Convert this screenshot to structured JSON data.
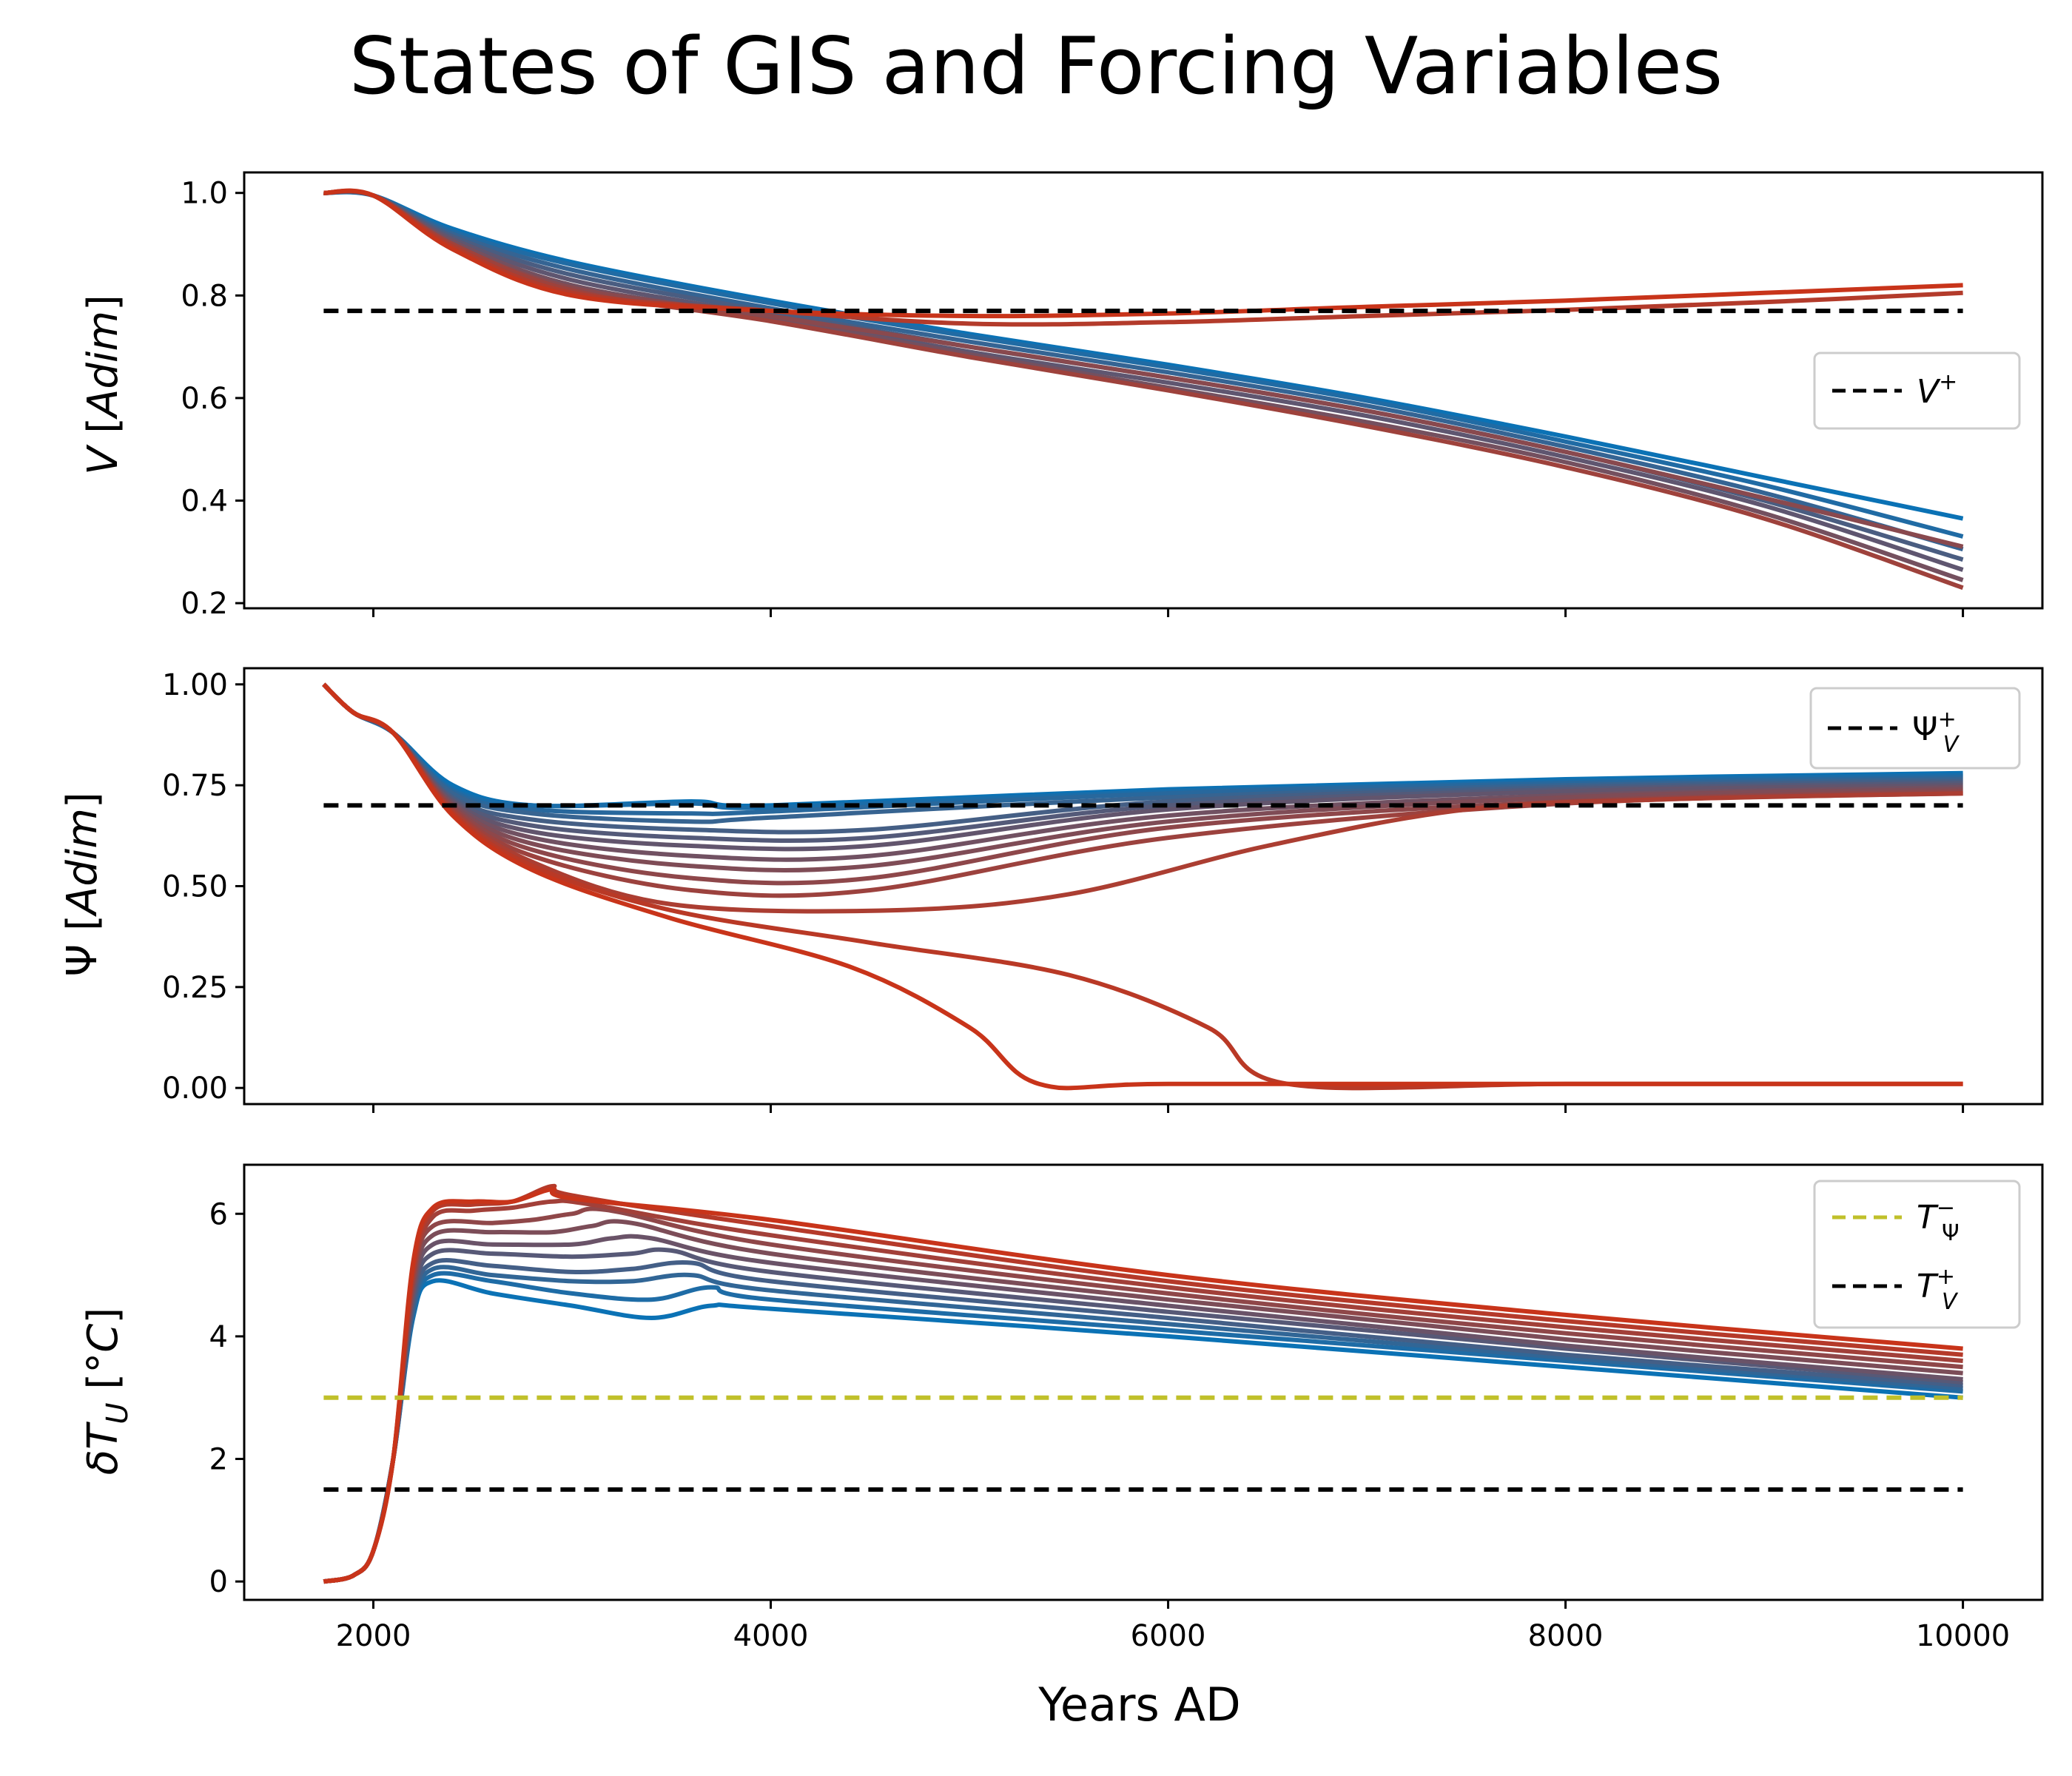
{
  "title": "States of GIS and Forcing Variables",
  "colors": {
    "blue": "#0b72b5",
    "red": "#c8341a",
    "threshold_black": "#000000",
    "threshold_olive": "#c0c02a"
  },
  "chart_data": [
    {
      "type": "line",
      "panel": "V",
      "ylabel": "V [Adim]",
      "xlim": [
        1750,
        10000
      ],
      "ylim": [
        0.19,
        1.04
      ],
      "yticks": [
        "0.2",
        "0.4",
        "0.6",
        "0.8",
        "1.0"
      ],
      "xticks": [
        2000,
        4000,
        6000,
        8000,
        10000
      ],
      "xticklabels_shown": false,
      "color_gradient": "blue to red",
      "series": [
        {
          "x": [
            1750,
            2000,
            2400,
            3000,
            4000,
            5000,
            6000,
            7000,
            8000,
            9000,
            10000
          ],
          "values": [
            1.0,
            0.995,
            0.93,
            0.865,
            0.79,
            0.725,
            0.665,
            0.6,
            0.525,
            0.445,
            0.365
          ]
        },
        {
          "x": [
            1750,
            2000,
            2400,
            3000,
            4000,
            5000,
            6000,
            7000,
            8000,
            9000,
            10000
          ],
          "values": [
            1.0,
            0.995,
            0.925,
            0.86,
            0.785,
            0.72,
            0.66,
            0.595,
            0.515,
            0.43,
            0.33
          ]
        },
        {
          "x": [
            1750,
            2000,
            2400,
            3000,
            4000,
            5000,
            6000,
            7000,
            8000,
            9000,
            10000
          ],
          "values": [
            1.0,
            0.995,
            0.92,
            0.85,
            0.775,
            0.71,
            0.65,
            0.585,
            0.505,
            0.415,
            0.305
          ]
        },
        {
          "x": [
            1750,
            2000,
            2400,
            3000,
            4000,
            5000,
            6000,
            7000,
            8000,
            9000,
            10000
          ],
          "values": [
            1.0,
            0.995,
            0.915,
            0.84,
            0.768,
            0.7,
            0.64,
            0.575,
            0.495,
            0.4,
            0.285
          ]
        },
        {
          "x": [
            1750,
            2000,
            2400,
            3000,
            4000,
            5000,
            6000,
            7000,
            8000,
            9000,
            10000
          ],
          "values": [
            1.0,
            0.995,
            0.91,
            0.83,
            0.76,
            0.69,
            0.63,
            0.565,
            0.485,
            0.39,
            0.265
          ]
        },
        {
          "x": [
            1750,
            2000,
            2400,
            3000,
            4000,
            5000,
            6000,
            7000,
            8000,
            9000,
            10000
          ],
          "values": [
            1.0,
            0.995,
            0.905,
            0.82,
            0.755,
            0.685,
            0.62,
            0.553,
            0.475,
            0.375,
            0.245
          ]
        },
        {
          "x": [
            1750,
            2000,
            2400,
            3000,
            4000,
            5000,
            6000,
            7000,
            8000,
            9000,
            10000
          ],
          "values": [
            1.0,
            0.995,
            0.9,
            0.815,
            0.76,
            0.7,
            0.64,
            0.575,
            0.495,
            0.405,
            0.31
          ]
        },
        {
          "x": [
            1750,
            2000,
            2400,
            3000,
            4000,
            5000,
            6000,
            7000,
            8000,
            9000,
            10000
          ],
          "values": [
            1.0,
            0.995,
            0.9,
            0.81,
            0.75,
            0.68,
            0.615,
            0.545,
            0.465,
            0.365,
            0.23
          ]
        },
        {
          "x": [
            1750,
            2000,
            2400,
            3000,
            4000,
            5000,
            6000,
            7000,
            8000,
            9000,
            10000
          ],
          "values": [
            1.0,
            0.995,
            0.895,
            0.805,
            0.77,
            0.745,
            0.748,
            0.76,
            0.772,
            0.787,
            0.805
          ]
        },
        {
          "x": [
            1750,
            2000,
            2400,
            3000,
            4000,
            5000,
            6000,
            7000,
            8000,
            9000,
            10000
          ],
          "values": [
            1.0,
            0.995,
            0.89,
            0.8,
            0.77,
            0.76,
            0.765,
            0.778,
            0.79,
            0.805,
            0.82
          ]
        }
      ],
      "thresholds": [
        {
          "label": "V^+",
          "value": 0.77,
          "color": "#000000"
        }
      ],
      "legend": "center-right"
    },
    {
      "type": "line",
      "panel": "Psi",
      "ylabel": "Ψ [Adim]",
      "xlim": [
        1750,
        10000
      ],
      "ylim": [
        -0.04,
        1.04
      ],
      "yticks": [
        "0.00",
        "0.25",
        "0.50",
        "0.75",
        "1.00"
      ],
      "xticks": [
        2000,
        4000,
        6000,
        8000,
        10000
      ],
      "xticklabels_shown": false,
      "color_gradient": "blue to red",
      "series": [
        {
          "x": [
            1750,
            1900,
            2100,
            2400,
            2800,
            3600,
            4000,
            6000,
            8000,
            10000
          ],
          "values": [
            1.0,
            0.93,
            0.88,
            0.75,
            0.7,
            0.71,
            0.7,
            0.74,
            0.765,
            0.78
          ]
        },
        {
          "x": [
            1750,
            1900,
            2100,
            2400,
            2800,
            3600,
            4000,
            6000,
            8000,
            10000
          ],
          "values": [
            1.0,
            0.93,
            0.88,
            0.74,
            0.7,
            0.705,
            0.695,
            0.735,
            0.76,
            0.775
          ]
        },
        {
          "x": [
            1750,
            1900,
            2100,
            2400,
            2800,
            3600,
            4000,
            6000,
            8000,
            10000
          ],
          "values": [
            1.0,
            0.93,
            0.88,
            0.735,
            0.69,
            0.68,
            0.685,
            0.73,
            0.755,
            0.77
          ]
        },
        {
          "x": [
            1750,
            1900,
            2100,
            2400,
            2800,
            3600,
            4000,
            6000,
            8000,
            10000
          ],
          "values": [
            1.0,
            0.93,
            0.88,
            0.73,
            0.68,
            0.66,
            0.67,
            0.72,
            0.75,
            0.765
          ]
        },
        {
          "x": [
            1750,
            1900,
            2100,
            2400,
            2800,
            3600,
            4500,
            6000,
            8000,
            10000
          ],
          "values": [
            1.0,
            0.93,
            0.88,
            0.72,
            0.665,
            0.64,
            0.64,
            0.71,
            0.745,
            0.76
          ]
        },
        {
          "x": [
            1750,
            1900,
            2100,
            2400,
            2800,
            3600,
            4500,
            6000,
            8000,
            10000
          ],
          "values": [
            1.0,
            0.93,
            0.88,
            0.715,
            0.65,
            0.62,
            0.62,
            0.7,
            0.74,
            0.755
          ]
        },
        {
          "x": [
            1750,
            1900,
            2100,
            2400,
            2800,
            3600,
            4500,
            6000,
            8000,
            10000
          ],
          "values": [
            1.0,
            0.93,
            0.88,
            0.71,
            0.635,
            0.6,
            0.6,
            0.69,
            0.735,
            0.75
          ]
        },
        {
          "x": [
            1750,
            1900,
            2100,
            2400,
            2800,
            3600,
            4500,
            6000,
            8000,
            10000
          ],
          "values": [
            1.0,
            0.93,
            0.88,
            0.705,
            0.62,
            0.575,
            0.575,
            0.675,
            0.725,
            0.745
          ]
        },
        {
          "x": [
            1750,
            1900,
            2100,
            2400,
            2800,
            3600,
            4500,
            6000,
            8000,
            10000
          ],
          "values": [
            1.0,
            0.93,
            0.88,
            0.7,
            0.605,
            0.55,
            0.55,
            0.66,
            0.72,
            0.74
          ]
        },
        {
          "x": [
            1750,
            1900,
            2100,
            2400,
            2800,
            3600,
            4500,
            6000,
            8000,
            10000
          ],
          "values": [
            1.0,
            0.93,
            0.88,
            0.695,
            0.59,
            0.52,
            0.52,
            0.645,
            0.71,
            0.735
          ]
        },
        {
          "x": [
            1750,
            1900,
            2100,
            2400,
            2800,
            3600,
            4500,
            6000,
            8000,
            10000
          ],
          "values": [
            1.0,
            0.93,
            0.88,
            0.69,
            0.575,
            0.49,
            0.49,
            0.62,
            0.705,
            0.73
          ]
        },
        {
          "x": [
            1750,
            1900,
            2100,
            2400,
            2800,
            3500,
            4600,
            5500,
            6500,
            7500,
            8500,
            10000
          ],
          "values": [
            1.0,
            0.93,
            0.88,
            0.685,
            0.56,
            0.455,
            0.44,
            0.48,
            0.6,
            0.69,
            0.715,
            0.73
          ]
        },
        {
          "x": [
            1750,
            1900,
            2100,
            2400,
            2800,
            3500,
            4500,
            5500,
            6200,
            6600,
            8000,
            10000
          ],
          "values": [
            1.0,
            0.93,
            0.88,
            0.68,
            0.55,
            0.44,
            0.36,
            0.28,
            0.15,
            0.01,
            0.01,
            0.01
          ]
        },
        {
          "x": [
            1750,
            1900,
            2100,
            2400,
            2800,
            3500,
            4400,
            5000,
            5350,
            6000,
            8000,
            10000
          ],
          "values": [
            1.0,
            0.93,
            0.88,
            0.675,
            0.54,
            0.42,
            0.3,
            0.15,
            0.01,
            0.01,
            0.01,
            0.01
          ]
        }
      ],
      "thresholds": [
        {
          "label": "Ψ_V^+",
          "value": 0.7,
          "color": "#000000"
        }
      ],
      "legend": "top-right"
    },
    {
      "type": "line",
      "panel": "dT",
      "ylabel": "δT_U [°C]",
      "xlabel": "Years AD",
      "xlim": [
        1750,
        10000
      ],
      "ylim": [
        -0.3,
        6.8
      ],
      "yticks": [
        "0",
        "2",
        "4",
        "6"
      ],
      "xticks": [
        2000,
        4000,
        6000,
        8000,
        10000
      ],
      "xticklabels": [
        "2000",
        "4000",
        "6000",
        "8000",
        "10000"
      ],
      "color_gradient": "blue to red",
      "series": [
        {
          "x": [
            1750,
            1900,
            2000,
            2100,
            2200,
            2300,
            2600,
            3000,
            3400,
            3700,
            4000,
            6000,
            8000,
            10000
          ],
          "values": [
            0.0,
            0.1,
            0.5,
            2.0,
            4.3,
            4.9,
            4.7,
            4.5,
            4.3,
            4.5,
            4.45,
            4.0,
            3.5,
            3.0
          ]
        },
        {
          "x": [
            1750,
            1900,
            2000,
            2100,
            2200,
            2300,
            2600,
            3000,
            3400,
            3700,
            4000,
            6000,
            8000,
            10000
          ],
          "values": [
            0.0,
            0.1,
            0.5,
            2.0,
            4.35,
            5.0,
            4.9,
            4.7,
            4.6,
            4.8,
            4.6,
            4.1,
            3.6,
            3.1
          ]
        },
        {
          "x": [
            1750,
            1900,
            2000,
            2100,
            2200,
            2300,
            2600,
            3000,
            3300,
            3600,
            4000,
            6000,
            8000,
            10000
          ],
          "values": [
            0.0,
            0.1,
            0.5,
            2.0,
            4.4,
            5.1,
            5.0,
            4.9,
            4.9,
            5.0,
            4.75,
            4.2,
            3.65,
            3.15
          ]
        },
        {
          "x": [
            1750,
            1900,
            2000,
            2100,
            2200,
            2300,
            2600,
            3000,
            3300,
            3600,
            4000,
            6000,
            8000,
            10000
          ],
          "values": [
            0.0,
            0.1,
            0.5,
            2.0,
            4.5,
            5.2,
            5.15,
            5.05,
            5.1,
            5.2,
            4.9,
            4.3,
            3.7,
            3.2
          ]
        },
        {
          "x": [
            1750,
            1900,
            2000,
            2100,
            2200,
            2300,
            2600,
            3000,
            3300,
            3500,
            4000,
            6000,
            8000,
            10000
          ],
          "values": [
            0.0,
            0.1,
            0.5,
            2.0,
            4.6,
            5.35,
            5.35,
            5.3,
            5.35,
            5.4,
            5.05,
            4.4,
            3.8,
            3.25
          ]
        },
        {
          "x": [
            1750,
            1900,
            2000,
            2100,
            2200,
            2300,
            2600,
            3000,
            3200,
            3400,
            4000,
            6000,
            8000,
            10000
          ],
          "values": [
            0.0,
            0.1,
            0.5,
            2.0,
            4.7,
            5.5,
            5.5,
            5.5,
            5.6,
            5.6,
            5.2,
            4.5,
            3.85,
            3.3
          ]
        },
        {
          "x": [
            1750,
            1900,
            2000,
            2100,
            2200,
            2300,
            2600,
            2900,
            3100,
            3300,
            4000,
            6000,
            8000,
            10000
          ],
          "values": [
            0.0,
            0.1,
            0.5,
            2.0,
            4.8,
            5.65,
            5.7,
            5.7,
            5.8,
            5.85,
            5.35,
            4.6,
            3.95,
            3.4
          ]
        },
        {
          "x": [
            1750,
            1900,
            2000,
            2100,
            2200,
            2300,
            2600,
            2800,
            3000,
            3200,
            4000,
            6000,
            8000,
            10000
          ],
          "values": [
            0.0,
            0.1,
            0.5,
            2.0,
            4.9,
            5.8,
            5.85,
            5.9,
            6.0,
            6.05,
            5.5,
            4.7,
            4.05,
            3.5
          ]
        },
        {
          "x": [
            1750,
            1900,
            2000,
            2100,
            2200,
            2300,
            2500,
            2700,
            2900,
            3100,
            4000,
            6000,
            8000,
            10000
          ],
          "values": [
            0.0,
            0.1,
            0.5,
            2.0,
            5.0,
            5.95,
            6.05,
            6.1,
            6.2,
            6.15,
            5.65,
            4.8,
            4.15,
            3.6
          ]
        },
        {
          "x": [
            1750,
            1900,
            2000,
            2100,
            2200,
            2300,
            2500,
            2700,
            2900,
            3000,
            4000,
            6000,
            8000,
            10000
          ],
          "values": [
            0.0,
            0.1,
            0.5,
            2.0,
            5.1,
            6.05,
            6.15,
            6.2,
            6.45,
            6.3,
            5.8,
            4.9,
            4.25,
            3.7
          ]
        },
        {
          "x": [
            1750,
            1900,
            2000,
            2100,
            2200,
            2300,
            2500,
            2700,
            2900,
            3000,
            4000,
            6000,
            8000,
            10000
          ],
          "values": [
            0.0,
            0.1,
            0.5,
            2.0,
            5.2,
            6.1,
            6.2,
            6.2,
            6.4,
            6.25,
            5.9,
            5.0,
            4.35,
            3.8
          ]
        }
      ],
      "thresholds": [
        {
          "label": "T_Ψ^-",
          "value": 3.0,
          "color": "#c0c02a"
        },
        {
          "label": "T_V^+",
          "value": 1.5,
          "color": "#000000"
        }
      ],
      "legend": "top-right"
    }
  ]
}
